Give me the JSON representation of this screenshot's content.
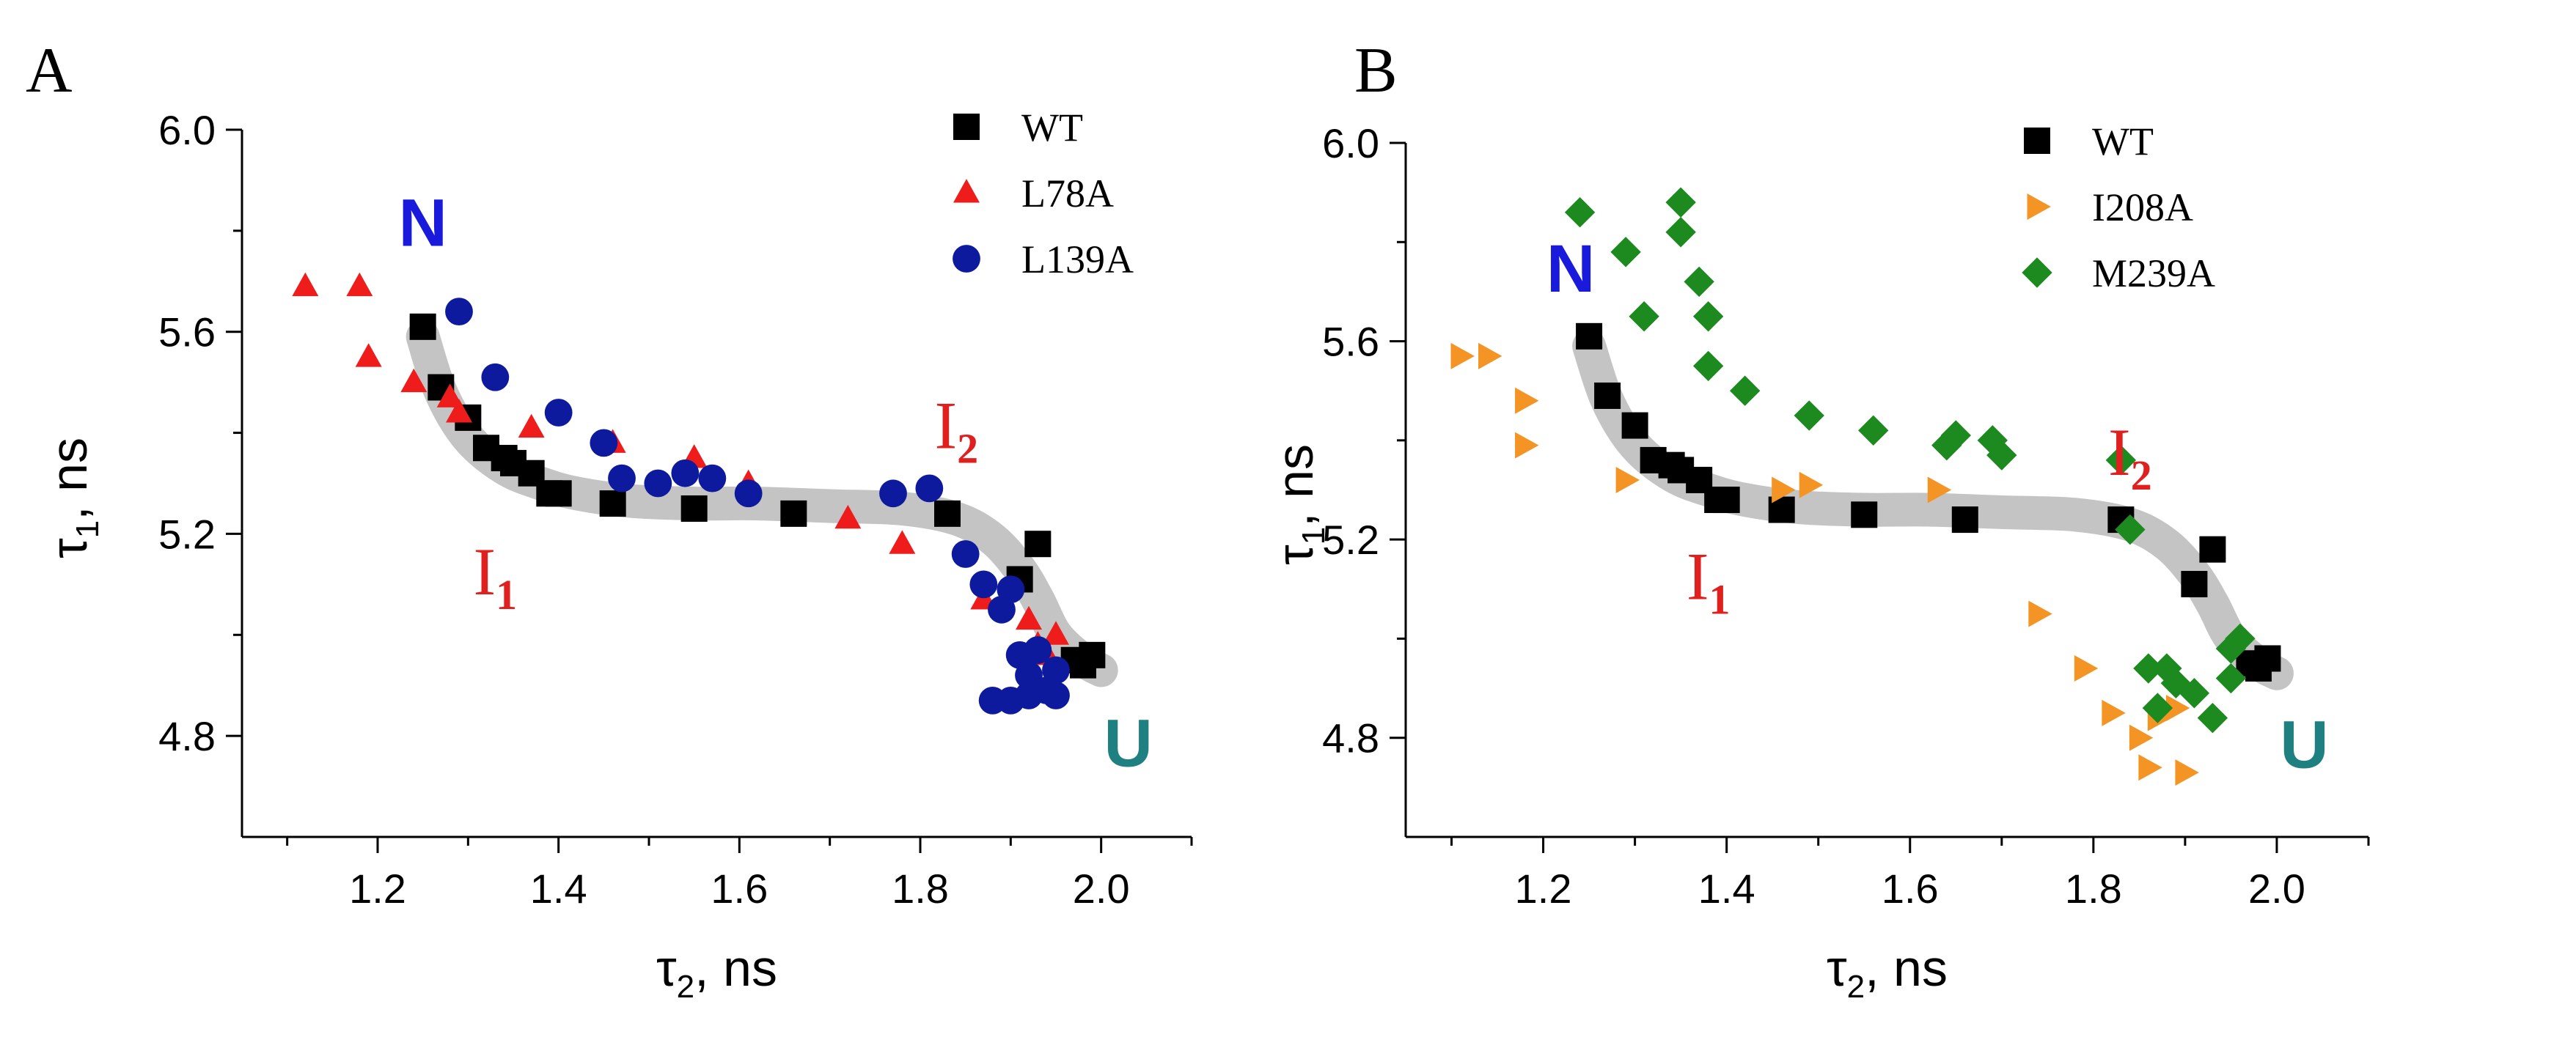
{
  "chart_data": [
    {
      "type": "scatter",
      "panel_label": "A",
      "xlabel_symbol": "τ",
      "xlabel_sub": "2",
      "xlabel_unit": ", ns",
      "ylabel_symbol": "τ",
      "ylabel_sub": "1",
      "ylabel_unit": ", ns",
      "xlim": [
        1.05,
        2.1
      ],
      "ylim": [
        4.6,
        6.0
      ],
      "xticks": [
        "1.2",
        "1.4",
        "1.6",
        "1.8",
        "2.0"
      ],
      "xtick_values": [
        1.2,
        1.4,
        1.6,
        1.8,
        2.0
      ],
      "yticks": [
        "4.8",
        "5.2",
        "5.6",
        "6.0"
      ],
      "ytick_values": [
        4.8,
        5.2,
        5.6,
        6.0
      ],
      "legend_position": "top-right",
      "trend_curve": {
        "x": [
          1.25,
          1.27,
          1.3,
          1.34,
          1.38,
          1.42,
          1.48,
          1.55,
          1.62,
          1.7,
          1.78,
          1.84,
          1.88,
          1.91,
          1.93,
          1.95,
          1.98,
          2.0
        ],
        "y": [
          5.59,
          5.48,
          5.39,
          5.33,
          5.3,
          5.28,
          5.265,
          5.26,
          5.26,
          5.255,
          5.25,
          5.23,
          5.19,
          5.13,
          5.07,
          5.0,
          4.95,
          4.93
        ]
      },
      "annotations": [
        {
          "main": "N",
          "sub": "",
          "x": 1.25,
          "y": 5.77,
          "color": "#1a1adc"
        },
        {
          "main": "I",
          "sub": "1",
          "x": 1.33,
          "y": 5.08,
          "color": "#e0201f"
        },
        {
          "main": "I",
          "sub": "2",
          "x": 1.84,
          "y": 5.37,
          "color": "#e0201f"
        },
        {
          "main": "U",
          "sub": "",
          "x": 2.03,
          "y": 4.74,
          "color": "#1e8080"
        }
      ],
      "series": [
        {
          "name": "WT",
          "marker": "square",
          "color": "#000000",
          "x": [
            1.25,
            1.27,
            1.3,
            1.32,
            1.34,
            1.35,
            1.37,
            1.39,
            1.4,
            1.46,
            1.55,
            1.66,
            1.83,
            1.93,
            1.91,
            1.98,
            1.99,
            1.97
          ],
          "y": [
            5.61,
            5.49,
            5.43,
            5.37,
            5.35,
            5.34,
            5.32,
            5.28,
            5.28,
            5.26,
            5.25,
            5.24,
            5.24,
            5.18,
            5.11,
            4.94,
            4.96,
            4.95
          ]
        },
        {
          "name": "L78A",
          "marker": "triangle",
          "color": "#ef1c1c",
          "x": [
            1.12,
            1.18,
            1.19,
            1.24,
            1.28,
            1.29,
            1.37,
            1.46,
            1.55,
            1.61,
            1.72,
            1.78,
            1.87,
            1.92,
            1.93,
            1.94,
            1.95
          ],
          "y": [
            5.69,
            5.69,
            5.55,
            5.5,
            5.47,
            5.44,
            5.41,
            5.38,
            5.35,
            5.3,
            5.23,
            5.18,
            5.07,
            5.03,
            4.98,
            4.96,
            5.0
          ]
        },
        {
          "name": "L139A",
          "marker": "circle",
          "color": "#0e1a9e",
          "x": [
            1.29,
            1.33,
            1.4,
            1.45,
            1.47,
            1.51,
            1.54,
            1.57,
            1.61,
            1.77,
            1.81,
            1.85,
            1.87,
            1.89,
            1.9,
            1.91,
            1.93,
            1.95,
            1.92,
            1.94,
            1.88,
            1.9,
            1.92,
            1.95
          ],
          "y": [
            5.64,
            5.51,
            5.44,
            5.38,
            5.31,
            5.3,
            5.32,
            5.31,
            5.28,
            5.28,
            5.29,
            5.16,
            5.1,
            5.05,
            5.09,
            4.96,
            4.97,
            4.93,
            4.92,
            4.89,
            4.87,
            4.87,
            4.88,
            4.88
          ]
        }
      ]
    },
    {
      "type": "scatter",
      "panel_label": "B",
      "xlabel_symbol": "τ",
      "xlabel_sub": "2",
      "xlabel_unit": ", ns",
      "ylabel_symbol": "τ",
      "ylabel_sub": "1",
      "ylabel_unit": ", ns",
      "xlim": [
        1.05,
        2.1
      ],
      "ylim": [
        4.6,
        6.0
      ],
      "xticks": [
        "1.2",
        "1.4",
        "1.6",
        "1.8",
        "2.0"
      ],
      "xtick_values": [
        1.2,
        1.4,
        1.6,
        1.8,
        2.0
      ],
      "yticks": [
        "4.8",
        "5.2",
        "5.6",
        "6.0"
      ],
      "ytick_values": [
        4.8,
        5.2,
        5.6,
        6.0
      ],
      "legend_position": "top-right",
      "trend_curve": {
        "x": [
          1.25,
          1.27,
          1.3,
          1.34,
          1.38,
          1.42,
          1.48,
          1.55,
          1.62,
          1.7,
          1.78,
          1.84,
          1.88,
          1.91,
          1.93,
          1.95,
          1.98,
          2.0
        ],
        "y": [
          5.59,
          5.48,
          5.39,
          5.33,
          5.3,
          5.28,
          5.265,
          5.26,
          5.26,
          5.255,
          5.25,
          5.23,
          5.19,
          5.13,
          5.07,
          5.0,
          4.95,
          4.93
        ]
      },
      "annotations": [
        {
          "main": "N",
          "sub": "",
          "x": 1.23,
          "y": 5.7,
          "color": "#1a1adc"
        },
        {
          "main": "I",
          "sub": "1",
          "x": 1.38,
          "y": 5.08,
          "color": "#e0201f"
        },
        {
          "main": "I",
          "sub": "2",
          "x": 1.84,
          "y": 5.33,
          "color": "#e0201f"
        },
        {
          "main": "U",
          "sub": "",
          "x": 2.03,
          "y": 4.74,
          "color": "#1e8080"
        }
      ],
      "series": [
        {
          "name": "WT",
          "marker": "square",
          "color": "#000000",
          "x": [
            1.25,
            1.27,
            1.3,
            1.32,
            1.34,
            1.35,
            1.37,
            1.39,
            1.4,
            1.46,
            1.55,
            1.66,
            1.83,
            1.93,
            1.91,
            1.98,
            1.99,
            1.97
          ],
          "y": [
            5.61,
            5.49,
            5.43,
            5.36,
            5.35,
            5.34,
            5.32,
            5.28,
            5.28,
            5.26,
            5.25,
            5.24,
            5.24,
            5.18,
            5.11,
            4.94,
            4.96,
            4.95
          ]
        },
        {
          "name": "I208A",
          "marker": "triangle-right",
          "color": "#f39425",
          "x": [
            1.11,
            1.14,
            1.18,
            1.18,
            1.29,
            1.46,
            1.49,
            1.63,
            1.74,
            1.79,
            1.82,
            1.85,
            1.86,
            1.87,
            1.89,
            1.9
          ],
          "y": [
            5.57,
            5.57,
            5.48,
            5.39,
            5.32,
            5.3,
            5.31,
            5.3,
            5.05,
            4.94,
            4.85,
            4.8,
            4.74,
            4.84,
            4.86,
            4.73
          ]
        },
        {
          "name": "M239A",
          "marker": "diamond",
          "color": "#1c8a1f",
          "x": [
            1.24,
            1.29,
            1.31,
            1.35,
            1.35,
            1.37,
            1.38,
            1.38,
            1.42,
            1.49,
            1.56,
            1.64,
            1.65,
            1.69,
            1.7,
            1.83,
            1.84,
            1.86,
            1.87,
            1.88,
            1.89,
            1.91,
            1.93,
            1.95,
            1.95,
            1.96
          ],
          "y": [
            5.86,
            5.78,
            5.65,
            5.88,
            5.82,
            5.72,
            5.65,
            5.55,
            5.5,
            5.45,
            5.42,
            5.39,
            5.41,
            5.4,
            5.37,
            5.36,
            5.22,
            4.94,
            4.86,
            4.94,
            4.91,
            4.89,
            4.84,
            4.92,
            4.98,
            5.0
          ]
        }
      ]
    }
  ]
}
